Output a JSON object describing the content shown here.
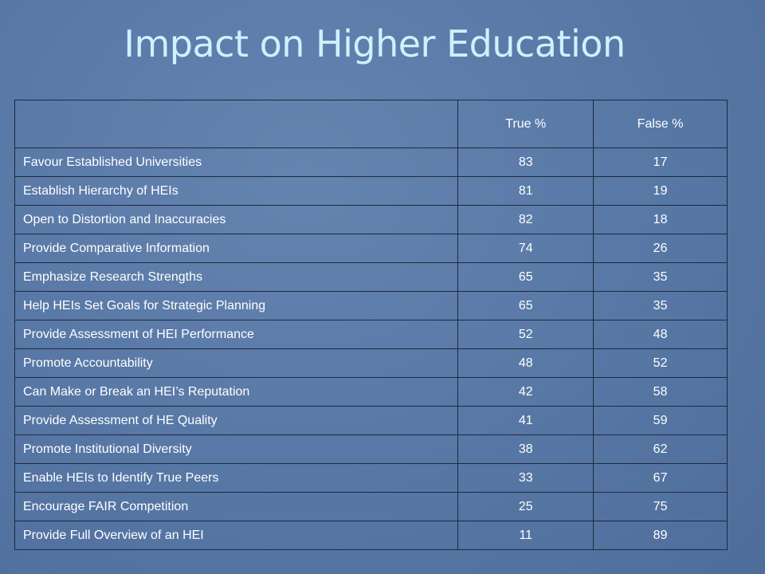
{
  "title": "Impact on Higher Education",
  "table": {
    "header": [
      "True %",
      "False %"
    ],
    "rows": [
      [
        "Favour Established Universities",
        83,
        17
      ],
      [
        "Establish Hierarchy of HEIs",
        81,
        19
      ],
      [
        "Open to Distortion and Inaccuracies",
        82,
        18
      ],
      [
        "Provide Comparative Information",
        74,
        26
      ],
      [
        "Emphasize Research Strengths",
        65,
        35
      ],
      [
        "Help HEIs Set Goals for Strategic Planning",
        65,
        35
      ],
      [
        "Provide Assessment of HEI Performance",
        52,
        48
      ],
      [
        "Promote Accountability",
        48,
        52
      ],
      [
        "Can Make or Break an HEI’s Reputation",
        42,
        58
      ],
      [
        "Provide Assessment of HE Quality",
        41,
        59
      ],
      [
        "Promote Institutional Diversity",
        38,
        62
      ],
      [
        "Enable HEIs to Identify True Peers",
        33,
        67
      ],
      [
        "Encourage FAIR Competition",
        25,
        75
      ],
      [
        "Provide Full Overview of an HEI",
        11,
        89
      ]
    ]
  }
}
